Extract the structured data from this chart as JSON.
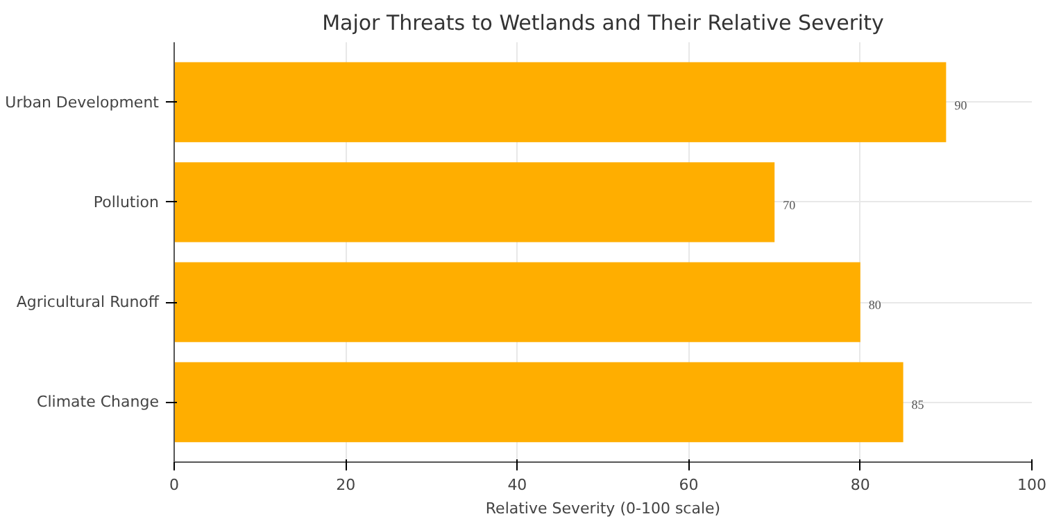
{
  "chart_data": {
    "type": "bar",
    "orientation": "horizontal",
    "title": "Major Threats to Wetlands and Their Relative Severity",
    "xlabel": "Relative Severity (0-100 scale)",
    "categories": [
      "Urban Development",
      "Pollution",
      "Agricultural Runoff",
      "Climate Change"
    ],
    "values": [
      90,
      70,
      80,
      85
    ],
    "color": "#ffae00",
    "xlim": [
      0,
      100
    ],
    "xticks": [
      0,
      20,
      40,
      60,
      80,
      100
    ],
    "grid": true,
    "data_labels": true
  }
}
